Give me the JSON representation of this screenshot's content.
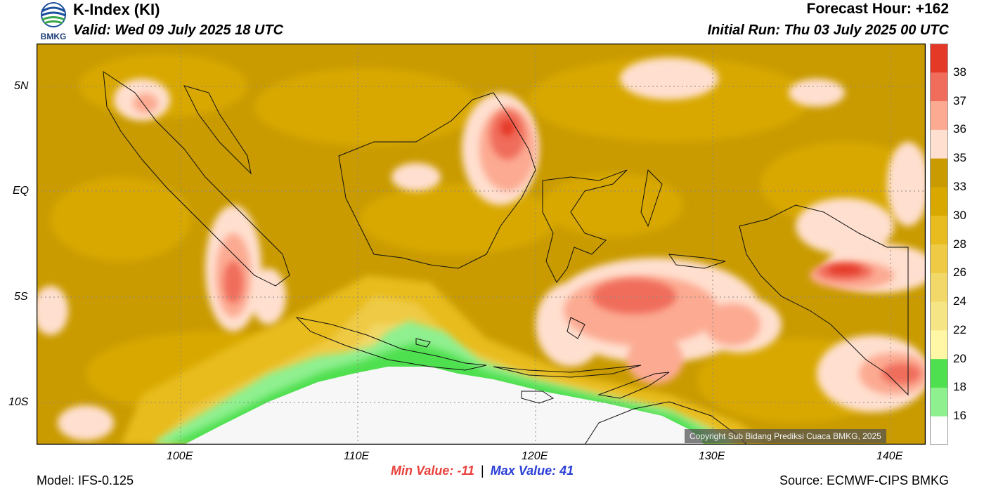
{
  "header": {
    "title": "K-Index (KI)",
    "valid": "Valid: Wed 09 July 2025 18 UTC",
    "forecast_hour": "Forecast Hour: +162",
    "initial_run": "Initial Run: Thu 03 July 2025 00 UTC",
    "logo_text": "BMKG"
  },
  "map": {
    "lon_labels": [
      "100E",
      "110E",
      "120E",
      "130E",
      "140E"
    ],
    "lat_labels": [
      "5N",
      "EQ",
      "5S",
      "10S"
    ],
    "copyright": "Copyright Sub Bidang Prediksi Cuaca BMKG, 2025"
  },
  "colorbar": {
    "labels": [
      "38",
      "37",
      "36",
      "35",
      "33",
      "30",
      "28",
      "26",
      "24",
      "22",
      "20",
      "18",
      "16"
    ],
    "colors": [
      "#ffffff",
      "#8ff08f",
      "#4fe04f",
      "#fff6a6",
      "#f6e585",
      "#f2d868",
      "#efcb45",
      "#e8bc1e",
      "#d8a800",
      "#c99b00",
      "#ffdfcf",
      "#fcaa92",
      "#f06d5c",
      "#e53928"
    ]
  },
  "footer": {
    "model": "Model: IFS-0.125",
    "min_value": "Min Value: -11",
    "separator": "|",
    "max_value": "Max Value:  41",
    "source": "Source: ECMWF-CIPS BMKG"
  }
}
